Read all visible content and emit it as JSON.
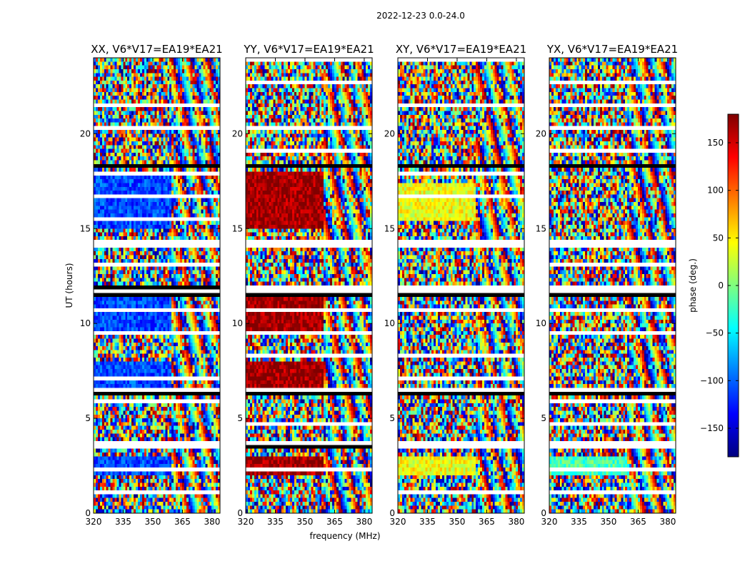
{
  "chart_data": {
    "type": "heatmap",
    "suptitle": "2022-12-23 0.0-24.0",
    "xlabel": "frequency (MHz)",
    "ylabel": "UT (hours)",
    "xlim": [
      320,
      384
    ],
    "ylim": [
      0,
      24
    ],
    "x_ticks": [
      320,
      335,
      350,
      365,
      380
    ],
    "y_ticks": [
      0,
      5,
      10,
      15,
      20
    ],
    "colorbar": {
      "label": "phase (deg.)",
      "range": [
        -180,
        180
      ],
      "ticks": [
        150,
        100,
        50,
        0,
        -50,
        -100,
        -150
      ],
      "tick_labels": [
        "150",
        "100",
        "50",
        "0",
        "−50",
        "−100",
        "−150"
      ],
      "colormap": [
        "#00007f",
        "#0000ff",
        "#007fff",
        "#00ffff",
        "#7fff7f",
        "#ffff00",
        "#ff7f00",
        "#ff0000",
        "#7f0000"
      ]
    },
    "flagged_hour_bands": [
      [
        3.4,
        3.8
      ],
      [
        6.2,
        6.6
      ],
      [
        11.5,
        12.0
      ],
      [
        14.0,
        14.2
      ],
      [
        18.2,
        18.5
      ]
    ],
    "panels": [
      {
        "title": "XX, V6*V17=EA19*EA21",
        "pol": "XX",
        "coherent_phase_deg": -110,
        "coherent_hours": [
          [
            2.0,
            3.0
          ],
          [
            6.6,
            8.0
          ],
          [
            9.5,
            11.5
          ],
          [
            15.0,
            18.0
          ]
        ]
      },
      {
        "title": "YY, V6*V17=EA19*EA21",
        "pol": "YY",
        "coherent_phase_deg": 170,
        "coherent_hours": [
          [
            2.0,
            3.0
          ],
          [
            6.6,
            8.0
          ],
          [
            9.5,
            11.5
          ],
          [
            15.0,
            18.0
          ]
        ]
      },
      {
        "title": "XY, V6*V17=EA19*EA21",
        "pol": "XY",
        "coherent_phase_deg": 40,
        "coherent_hours": [
          [
            2.0,
            3.0
          ],
          [
            15.5,
            17.5
          ]
        ]
      },
      {
        "title": "YX, V6*V17=EA19*EA21",
        "pol": "YX",
        "coherent_phase_deg": -20,
        "coherent_hours": [
          [
            2.0,
            3.0
          ]
        ]
      }
    ]
  }
}
